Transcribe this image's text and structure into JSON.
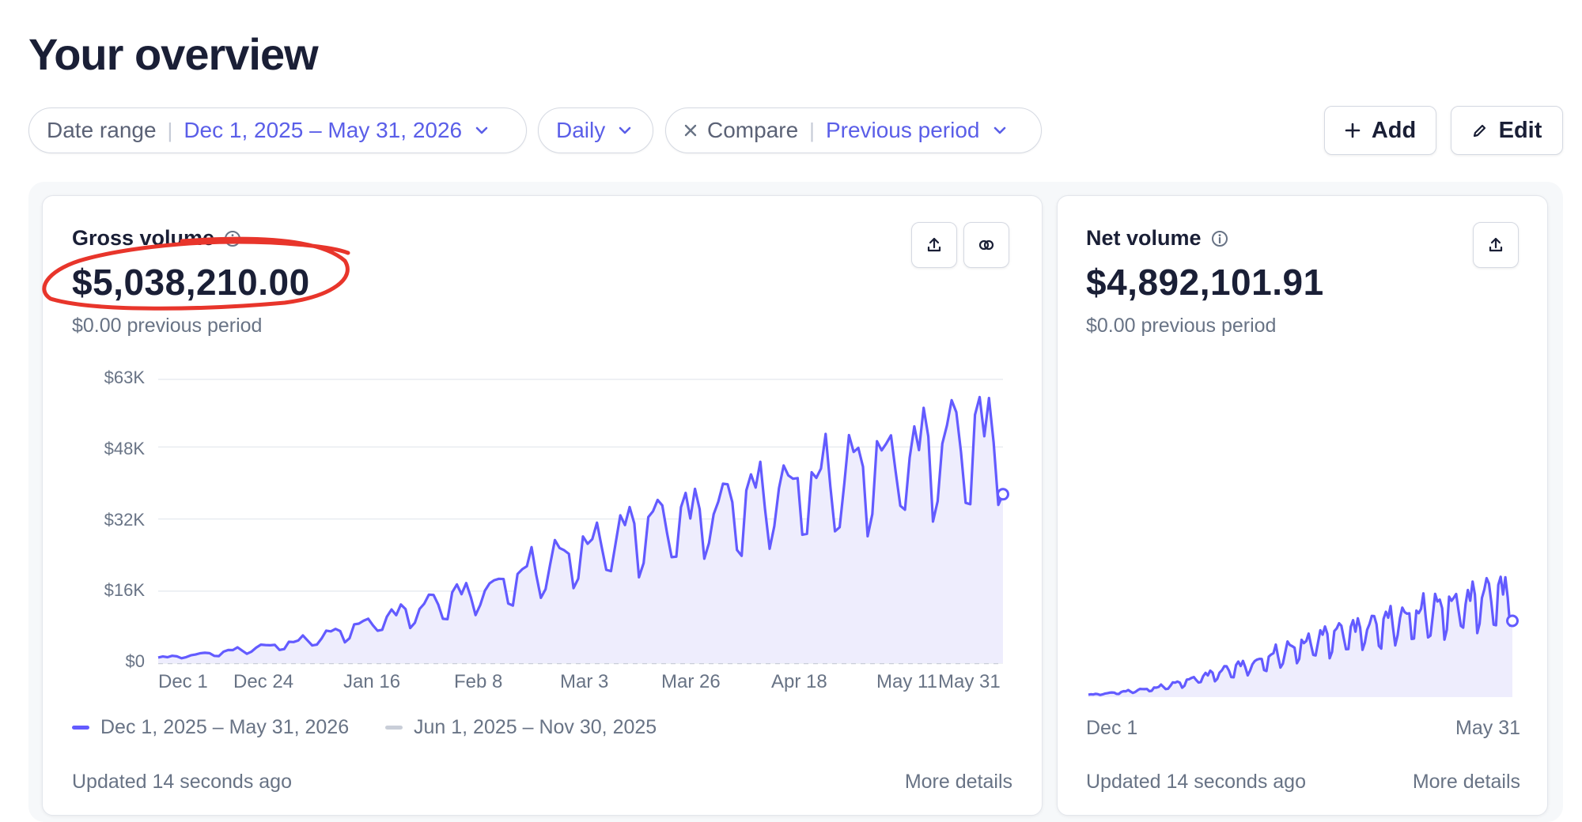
{
  "page": {
    "title": "Your overview"
  },
  "filters": {
    "date_range": {
      "label": "Date range",
      "value": "Dec 1, 2025 – May 31, 2026"
    },
    "interval": {
      "value": "Daily"
    },
    "compare": {
      "label": "Compare",
      "value": "Previous period"
    }
  },
  "actions": {
    "add_label": "Add",
    "edit_label": "Edit"
  },
  "gross_card": {
    "title": "Gross volume",
    "value": "$5,038,210.00",
    "previous": "$0.00 previous period",
    "updated": "Updated 14 seconds ago",
    "more_details": "More details",
    "legend_current": "Dec 1, 2025 – May 31, 2026",
    "legend_previous": "Jun 1, 2025 – Nov 30, 2025"
  },
  "net_card": {
    "title": "Net volume",
    "value": "$4,892,101.91",
    "previous": "$0.00 previous period",
    "updated": "Updated 14 seconds ago",
    "more_details": "More details",
    "x_start": "Dec 1",
    "x_end": "May 31"
  },
  "colors": {
    "accent": "#635bff",
    "area": "#eeedfd",
    "previous_series": "#c9ced8",
    "annotation": "#e8352b"
  },
  "chart_data": [
    {
      "type": "area",
      "title": "Gross volume",
      "x_tick_labels": [
        "Dec 1",
        "Dec 24",
        "Jan 16",
        "Feb 8",
        "Mar 3",
        "Mar 26",
        "Apr 18",
        "May 11",
        "May 31"
      ],
      "y_tick_labels": [
        "$0",
        "$16K",
        "$32K",
        "$48K",
        "$63K"
      ],
      "ylim": [
        0,
        63000
      ],
      "x_range": [
        "2025-12-01",
        "2026-05-31"
      ],
      "grid": true,
      "legend": "bottom",
      "series": [
        {
          "name": "Dec 1, 2025 – May 31, 2026",
          "values_weekly_approx": [
            1200,
            1800,
            2500,
            3500,
            4500,
            6000,
            8000,
            10500,
            12500,
            15000,
            16500,
            19500,
            23000,
            26000,
            29000,
            31500,
            33500,
            35000,
            37000,
            39500,
            41000,
            43000,
            45500,
            47500,
            50000,
            52000
          ],
          "end_value": 37500
        },
        {
          "name": "Jun 1, 2025 – Nov 30, 2025",
          "values_weekly_approx": [
            0,
            0,
            0,
            0,
            0,
            0,
            0,
            0,
            0,
            0,
            0,
            0,
            0,
            0,
            0,
            0,
            0,
            0,
            0,
            0,
            0,
            0,
            0,
            0,
            0,
            0
          ]
        }
      ]
    },
    {
      "type": "area",
      "title": "Net volume",
      "x_tick_labels": [
        "Dec 1",
        "May 31"
      ],
      "x_range": [
        "2025-12-01",
        "2026-05-31"
      ],
      "series": [
        {
          "name": "Dec 1, 2025 – May 31, 2026",
          "values_weekly_approx": [
            1100,
            1700,
            2400,
            3300,
            4300,
            5800,
            7700,
            10100,
            12000,
            14400,
            15900,
            18800,
            22100,
            25000,
            27900,
            30300,
            32200,
            33700,
            35600,
            38000,
            39500,
            41400,
            43800,
            45700,
            48100,
            50000
          ],
          "end_value": 36000
        }
      ]
    }
  ]
}
